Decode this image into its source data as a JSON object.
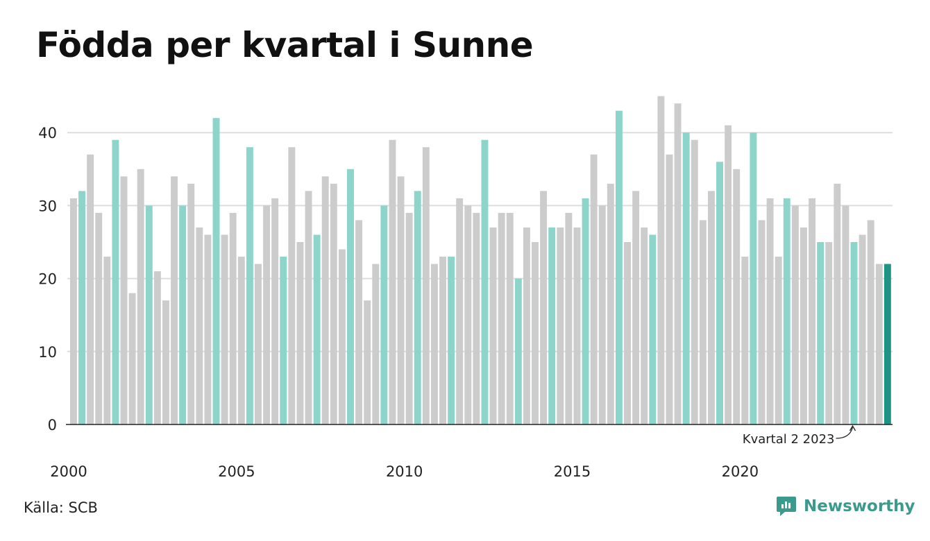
{
  "chart_data": {
    "type": "bar",
    "title": "Födda per kvartal i Sunne",
    "xlabel": "",
    "ylabel": "",
    "ylim": [
      0,
      45
    ],
    "yticks": [
      0,
      10,
      20,
      30,
      40
    ],
    "x_tick_labels": [
      "2000",
      "2005",
      "2010",
      "2015",
      "2020"
    ],
    "grid": true,
    "start": {
      "year": 2000,
      "quarter": 1
    },
    "values": [
      31,
      32,
      37,
      29,
      23,
      39,
      34,
      18,
      35,
      30,
      21,
      17,
      34,
      30,
      33,
      27,
      26,
      42,
      26,
      29,
      23,
      38,
      22,
      30,
      31,
      23,
      38,
      25,
      32,
      26,
      34,
      33,
      24,
      35,
      28,
      17,
      22,
      30,
      39,
      34,
      29,
      32,
      38,
      22,
      23,
      23,
      31,
      30,
      29,
      39,
      27,
      29,
      29,
      20,
      27,
      25,
      32,
      27,
      27,
      29,
      27,
      31,
      37,
      30,
      33,
      43,
      25,
      32,
      27,
      26,
      45,
      37,
      44,
      40,
      39,
      28,
      32,
      36,
      41,
      35,
      23,
      40,
      28,
      31,
      23,
      31,
      30,
      27,
      31,
      25,
      25,
      33,
      30,
      25,
      26,
      28,
      22,
      22
    ],
    "annotation": "Kvartal 2 2023",
    "colors": {
      "highlight_quarter": "#8dd4cb",
      "other": "#cccccc",
      "latest": "#1d9484"
    }
  },
  "source": "Källa: SCB",
  "brand": {
    "name": "Newsworthy",
    "icon": "newsworthy-logo-icon",
    "color": "#3a9a8c"
  }
}
